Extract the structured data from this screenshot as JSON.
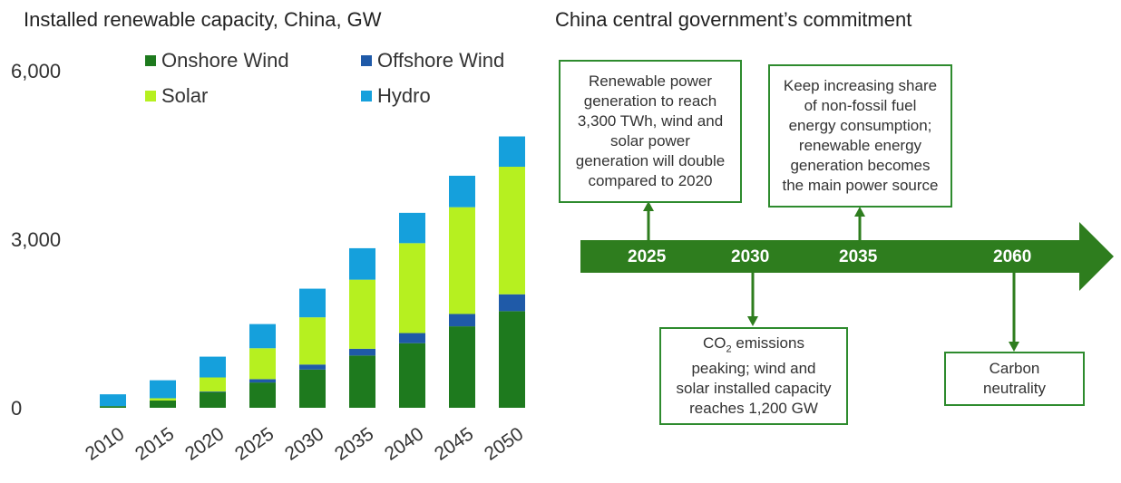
{
  "chart_title": "Installed renewable capacity, China, GW",
  "timeline_title": "China central government’s commitment",
  "chart_data": {
    "type": "bar",
    "stacked": true,
    "title": "Installed renewable capacity, China, GW",
    "categories": [
      "2010",
      "2015",
      "2020",
      "2025",
      "2030",
      "2035",
      "2040",
      "2045",
      "2050"
    ],
    "ylim": [
      0,
      6000
    ],
    "yticks": [
      0,
      3000,
      6000
    ],
    "ytick_labels": [
      "0",
      "3,000",
      "6,000"
    ],
    "legend_position": "top",
    "series": [
      {
        "name": "Onshore Wind",
        "color": "#1e7a1e",
        "values": [
          30,
          130,
          280,
          450,
          680,
          930,
          1150,
          1450,
          1720
        ]
      },
      {
        "name": "Offshore Wind",
        "color": "#1f5aa8",
        "values": [
          0,
          0,
          10,
          60,
          90,
          120,
          180,
          220,
          300
        ]
      },
      {
        "name": "Solar",
        "color": "#b6f020",
        "values": [
          0,
          40,
          250,
          550,
          840,
          1230,
          1600,
          1900,
          2270
        ]
      },
      {
        "name": "Hydro",
        "color": "#15a0dc",
        "values": [
          210,
          320,
          370,
          430,
          510,
          560,
          540,
          560,
          540
        ]
      }
    ]
  },
  "timeline": {
    "years": [
      "2025",
      "2030",
      "2035",
      "2060"
    ],
    "box_2025": [
      "Renewable power",
      "generation to reach",
      "3,300 TWh, wind and",
      "solar power",
      "generation will double",
      "compared to 2020"
    ],
    "box_2035": [
      "Keep increasing share",
      "of non-fossil fuel",
      "energy consumption;",
      "renewable energy",
      "generation becomes",
      "the main power source"
    ],
    "box_2030_line1_pre": "CO",
    "box_2030_line1_sub": "2",
    "box_2030_line1_post": " emissions",
    "box_2030": [
      "peaking; wind and",
      "solar installed capacity",
      "reaches 1,200 GW"
    ],
    "box_2060": [
      "Carbon",
      "neutrality"
    ]
  },
  "colors": {
    "arrow": "#2e7d1e",
    "box_border": "#2e8b2e"
  }
}
